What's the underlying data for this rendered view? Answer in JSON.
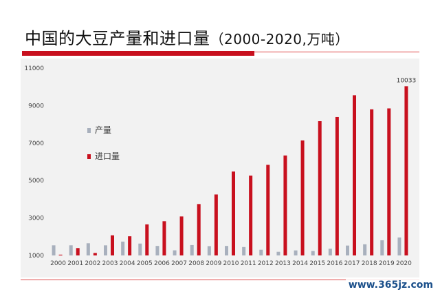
{
  "title": "中国的大豆产量和进口量",
  "title_unit": "（2000-2020,万吨）",
  "watermark": "www.365jz.com",
  "colors": {
    "production": "#a8b0bd",
    "imports": "#c8101e",
    "accent": "#c8101e"
  },
  "chart_data": {
    "type": "bar",
    "categories": [
      "2000",
      "2001",
      "2002",
      "2003",
      "2004",
      "2005",
      "2006",
      "2007",
      "2008",
      "2009",
      "2010",
      "2011",
      "2012",
      "2013",
      "2014",
      "2015",
      "2016",
      "2017",
      "2018",
      "2019",
      "2020"
    ],
    "series": [
      {
        "name": "产量",
        "color": "#a8b0bd",
        "values": [
          1540,
          1541,
          1651,
          1539,
          1740,
          1635,
          1508,
          1273,
          1554,
          1498,
          1508,
          1449,
          1305,
          1195,
          1269,
          1237,
          1359,
          1528,
          1597,
          1810,
          1960
        ]
      },
      {
        "name": "进口量",
        "color": "#c8101e",
        "values": [
          1042,
          1394,
          1132,
          2074,
          2023,
          2659,
          2827,
          3082,
          3744,
          4255,
          5480,
          5264,
          5838,
          6338,
          7140,
          8169,
          8391,
          9553,
          8803,
          8851,
          10033
        ]
      }
    ],
    "ylim": [
      1000,
      11000
    ],
    "yticks": [
      1000,
      3000,
      5000,
      7000,
      9000,
      11000
    ],
    "grid": false,
    "legend": "left",
    "data_labels": [
      {
        "category": "2020",
        "series": "进口量",
        "text": "10033"
      }
    ]
  }
}
